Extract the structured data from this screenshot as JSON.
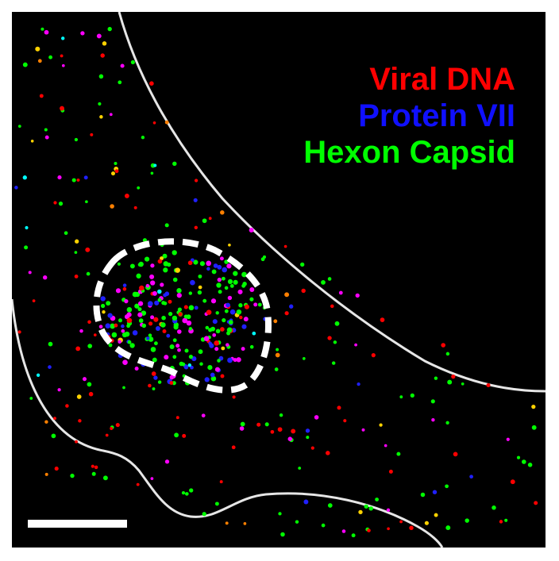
{
  "legend": {
    "items": [
      {
        "label": "Viral DNA",
        "color": "#ff0000"
      },
      {
        "label": "Protein VII",
        "color": "#1010ff"
      },
      {
        "label": "Hexon Capsid",
        "color": "#00ff00"
      }
    ]
  },
  "colors": {
    "background": "#000000",
    "cell_outline": "#e6e6e6",
    "nucleus_outline": "#ffffff",
    "scale_bar": "#ffffff",
    "spot_colors": [
      "#00ff00",
      "#ff0000",
      "#2020ff",
      "#ff00ff",
      "#ffd200",
      "#ff8000",
      "#00ffff"
    ]
  },
  "spots": {
    "nucleus_total": 260,
    "cytoplasm_total": 230
  }
}
